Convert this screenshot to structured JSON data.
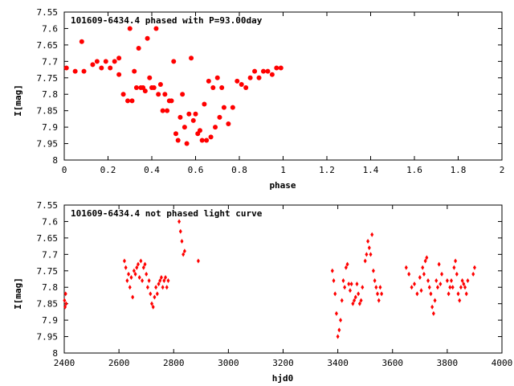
{
  "chart_data": [
    {
      "type": "scatter",
      "title": "101609-6434.4 phased with P=93.00day",
      "xlabel": "phase",
      "ylabel": "I[mag]",
      "xlim": [
        0,
        2
      ],
      "ylim": [
        7.55,
        8
      ],
      "y_inverted": true,
      "grid": false,
      "marker": "filled-circle",
      "color": "#ff0000",
      "x_ticks": [
        "0",
        "0.2",
        "0.4",
        "0.6",
        "0.8",
        "1",
        "1.2",
        "1.4",
        "1.6",
        "1.8",
        "2"
      ],
      "y_ticks": [
        "7.55",
        "7.6",
        "7.65",
        "7.7",
        "7.75",
        "7.8",
        "7.85",
        "7.9",
        "7.95",
        "8"
      ],
      "series": [
        {
          "x": [
            0.01,
            0.05,
            0.09,
            0.13,
            0.15,
            0.17,
            0.19,
            0.21,
            0.23,
            0.25,
            0.27,
            0.29,
            0.31,
            0.33,
            0.35,
            0.37,
            0.39,
            0.41,
            0.43,
            0.45,
            0.47,
            0.49,
            0.51,
            0.53,
            0.55,
            0.57,
            0.59,
            0.61,
            0.63,
            0.65,
            0.67,
            0.69,
            0.71,
            0.73,
            0.75,
            0.77,
            0.79,
            0.81,
            0.83,
            0.85,
            0.87,
            0.89,
            0.91,
            0.93,
            0.95,
            0.97,
            0.99,
            0.08,
            0.3,
            0.34,
            0.38,
            0.42,
            0.25,
            0.56,
            0.54,
            0.62,
            0.66,
            0.7,
            0.48,
            0.52,
            0.58,
            0.36,
            0.44,
            0.6,
            0.68,
            0.32,
            0.4,
            0.46,
            0.5,
            0.64,
            0.72
          ],
          "y": [
            7.72,
            7.73,
            7.73,
            7.71,
            7.7,
            7.72,
            7.7,
            7.72,
            7.7,
            7.74,
            7.8,
            7.82,
            7.82,
            7.78,
            7.78,
            7.79,
            7.75,
            7.78,
            7.8,
            7.85,
            7.85,
            7.82,
            7.92,
            7.87,
            7.9,
            7.86,
            7.88,
            7.92,
            7.94,
            7.94,
            7.93,
            7.9,
            7.87,
            7.84,
            7.89,
            7.84,
            7.76,
            7.77,
            7.78,
            7.75,
            7.73,
            7.75,
            7.73,
            7.73,
            7.74,
            7.72,
            7.72,
            7.64,
            7.6,
            7.66,
            7.63,
            7.6,
            7.69,
            7.95,
            7.8,
            7.91,
            7.76,
            7.75,
            7.82,
            7.94,
            7.69,
            7.78,
            7.77,
            7.86,
            7.78,
            7.73,
            7.78,
            7.8,
            7.7,
            7.83,
            7.78
          ]
        }
      ]
    },
    {
      "type": "scatter",
      "title": "101609-6434.4 not phased light curve",
      "xlabel": "hjd0",
      "ylabel": "I[mag]",
      "xlim": [
        2400,
        4000
      ],
      "ylim": [
        7.55,
        8
      ],
      "y_inverted": true,
      "grid": false,
      "marker": "diamond",
      "color": "#ff0000",
      "x_ticks": [
        "2400",
        "2600",
        "2800",
        "3000",
        "3200",
        "3400",
        "3600",
        "3800",
        "4000"
      ],
      "y_ticks": [
        "7.55",
        "7.6",
        "7.65",
        "7.7",
        "7.75",
        "7.8",
        "7.85",
        "7.9",
        "7.95",
        "8"
      ],
      "series": [
        {
          "x": [
            2401,
            2403,
            2405,
            2407,
            2620,
            2625,
            2630,
            2635,
            2640,
            2645,
            2650,
            2655,
            2660,
            2665,
            2670,
            2675,
            2680,
            2685,
            2690,
            2695,
            2700,
            2705,
            2710,
            2715,
            2720,
            2725,
            2730,
            2735,
            2740,
            2745,
            2750,
            2755,
            2760,
            2765,
            2770,
            2775,
            2780,
            2820,
            2825,
            2830,
            2835,
            2840,
            2890,
            3380,
            3385,
            3390,
            3395,
            3400,
            3405,
            3410,
            3415,
            3420,
            3425,
            3430,
            3435,
            3440,
            3445,
            3450,
            3455,
            3460,
            3465,
            3470,
            3475,
            3480,
            3485,
            3490,
            3500,
            3505,
            3510,
            3515,
            3520,
            3525,
            3530,
            3535,
            3540,
            3545,
            3550,
            3555,
            3560,
            3650,
            3660,
            3670,
            3680,
            3690,
            3700,
            3705,
            3710,
            3715,
            3720,
            3725,
            3730,
            3735,
            3740,
            3745,
            3750,
            3755,
            3760,
            3765,
            3770,
            3775,
            3780,
            3800,
            3805,
            3810,
            3815,
            3820,
            3825,
            3830,
            3835,
            3840,
            3845,
            3850,
            3855,
            3860,
            3865,
            3870,
            3875,
            3895,
            3900
          ],
          "y": [
            7.84,
            7.86,
            7.82,
            7.85,
            7.72,
            7.74,
            7.78,
            7.76,
            7.8,
            7.77,
            7.83,
            7.75,
            7.76,
            7.74,
            7.73,
            7.77,
            7.72,
            7.78,
            7.74,
            7.73,
            7.76,
            7.8,
            7.78,
            7.82,
            7.85,
            7.86,
            7.83,
            7.8,
            7.82,
            7.79,
            7.78,
            7.77,
            7.8,
            7.78,
            7.77,
            7.8,
            7.78,
            7.6,
            7.63,
            7.66,
            7.7,
            7.69,
            7.72,
            7.75,
            7.78,
            7.82,
            7.88,
            7.95,
            7.93,
            7.9,
            7.84,
            7.78,
            7.8,
            7.74,
            7.73,
            7.79,
            7.81,
            7.79,
            7.85,
            7.84,
            7.83,
            7.79,
            7.82,
            7.85,
            7.84,
            7.8,
            7.72,
            7.7,
            7.66,
            7.68,
            7.7,
            7.64,
            7.75,
            7.78,
            7.8,
            7.82,
            7.84,
            7.8,
            7.82,
            7.74,
            7.76,
            7.8,
            7.79,
            7.82,
            7.77,
            7.81,
            7.74,
            7.76,
            7.72,
            7.71,
            7.78,
            7.8,
            7.82,
            7.86,
            7.88,
            7.84,
            7.78,
            7.8,
            7.73,
            7.79,
            7.76,
            7.78,
            7.82,
            7.8,
            7.78,
            7.8,
            7.74,
            7.72,
            7.76,
            7.82,
            7.84,
            7.8,
            7.78,
            7.79,
            7.8,
            7.82,
            7.78,
            7.76,
            7.74
          ]
        }
      ]
    }
  ]
}
